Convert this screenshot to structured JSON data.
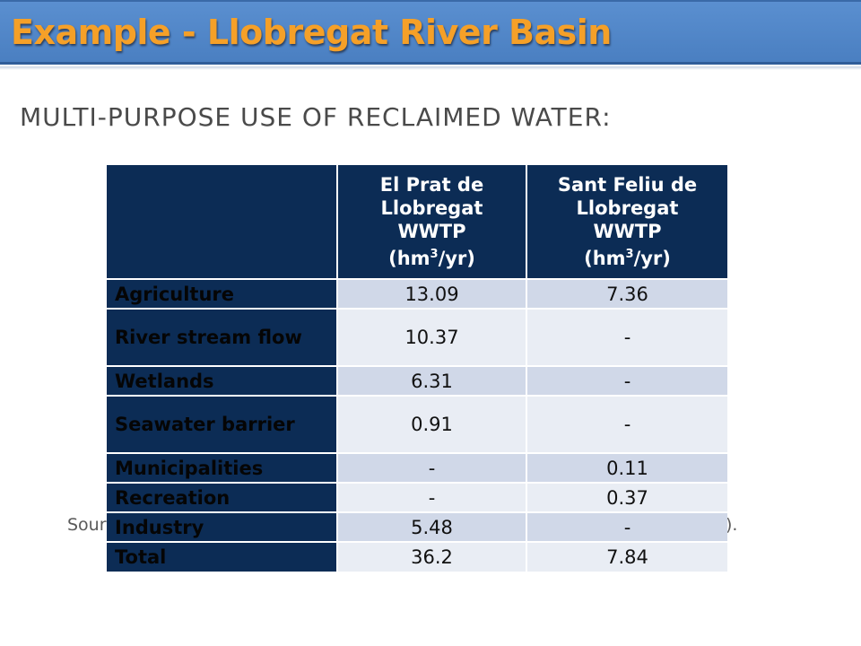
{
  "title": "Example - Llobregat River Basin",
  "subtitle": "MULTI-PURPOSE USE OF RECLAIMED WATER:",
  "source_left_fragment": "Sour",
  "source_right_fragment": ").",
  "table": {
    "headers": [
      "",
      "El Prat de Llobregat WWTP (hm3/yr)",
      "Sant Feliu de Llobregat WWTP (hm3/yr)"
    ],
    "header_lines": [
      [
        "El Prat de",
        "Llobregat",
        "WWTP",
        "(hm",
        "3",
        "/yr)"
      ],
      [
        "Sant Feliu de",
        "Llobregat",
        "WWTP",
        "(hm",
        "3",
        "/yr)"
      ]
    ],
    "rows": [
      {
        "label": "Agriculture",
        "el_prat": "13.09",
        "sant_feliu": "7.36"
      },
      {
        "label": "River stream flow",
        "el_prat": "10.37",
        "sant_feliu": "-"
      },
      {
        "label": "Wetlands",
        "el_prat": "6.31",
        "sant_feliu": "-"
      },
      {
        "label": "Seawater barrier",
        "el_prat": "0.91",
        "sant_feliu": "-"
      },
      {
        "label": "Municipalities",
        "el_prat": "-",
        "sant_feliu": "0.11"
      },
      {
        "label": "Recreation",
        "el_prat": "-",
        "sant_feliu": "0.37"
      },
      {
        "label": "Industry",
        "el_prat": "5.48",
        "sant_feliu": "-"
      },
      {
        "label": "Total",
        "el_prat": "36.2",
        "sant_feliu": "7.84"
      }
    ]
  },
  "colors": {
    "title_bar": "#4a7fc1",
    "title_text": "#f5a028",
    "table_header": "#0c2c55",
    "row_odd": "#d0d8e8",
    "row_even": "#e9edf4"
  }
}
